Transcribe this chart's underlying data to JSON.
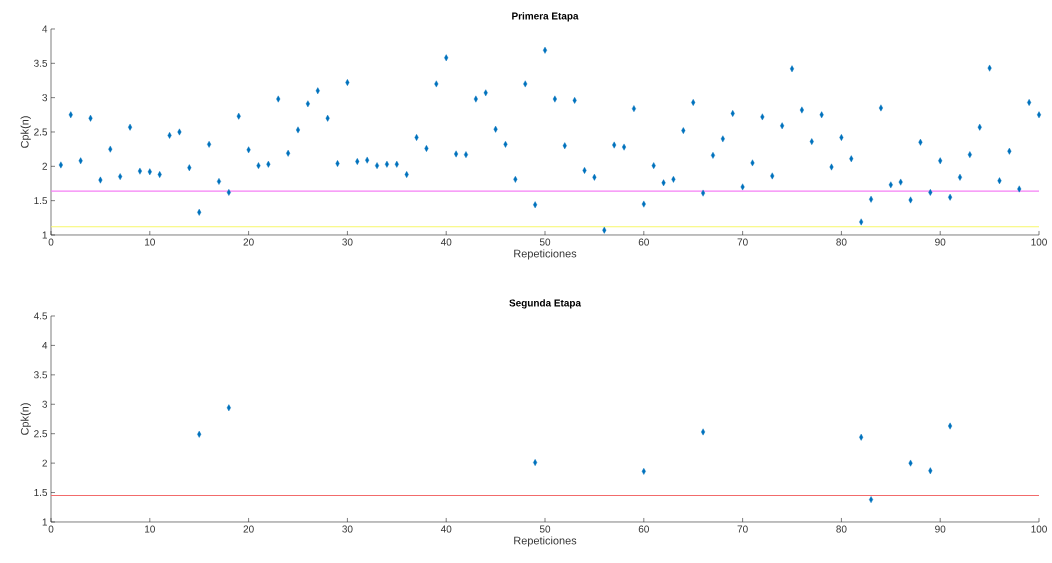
{
  "chart_data": [
    {
      "type": "scatter",
      "title": "Primera Etapa",
      "xlabel": "Repeticiones",
      "ylabel": "Cpk(n)",
      "marker": "diamond",
      "xlim": [
        0,
        100
      ],
      "xticks": [
        0,
        10,
        20,
        30,
        40,
        50,
        60,
        70,
        80,
        90,
        100
      ],
      "ylim": [
        1,
        4
      ],
      "yticks": [
        1,
        1.5,
        2,
        2.5,
        3,
        3.5,
        4
      ],
      "ref_lines": [
        {
          "axis": "y",
          "value": 1.64,
          "color": "#f57ff5"
        },
        {
          "axis": "y",
          "value": 1.12,
          "color": "#f7f76a"
        }
      ],
      "series": [
        {
          "color": "#0072bd",
          "x": [
            1,
            2,
            3,
            4,
            5,
            6,
            7,
            8,
            9,
            10,
            11,
            12,
            13,
            14,
            15,
            16,
            17,
            18,
            19,
            20,
            21,
            22,
            23,
            24,
            25,
            26,
            27,
            28,
            29,
            30,
            31,
            32,
            33,
            34,
            35,
            36,
            37,
            38,
            39,
            40,
            41,
            42,
            43,
            44,
            45,
            46,
            47,
            48,
            49,
            50,
            51,
            52,
            53,
            54,
            55,
            56,
            57,
            58,
            59,
            60,
            61,
            62,
            63,
            64,
            65,
            66,
            67,
            68,
            69,
            70,
            71,
            72,
            73,
            74,
            75,
            76,
            77,
            78,
            79,
            80,
            81,
            82,
            83,
            84,
            85,
            86,
            87,
            88,
            89,
            90,
            91,
            92,
            93,
            94,
            95,
            96,
            97,
            98,
            99,
            100
          ],
          "values": [
            2.02,
            2.75,
            2.08,
            2.7,
            1.8,
            2.25,
            1.85,
            2.57,
            1.93,
            1.92,
            1.88,
            2.45,
            2.5,
            1.98,
            1.33,
            2.32,
            1.78,
            1.62,
            2.73,
            2.24,
            2.01,
            2.03,
            2.98,
            2.19,
            2.53,
            2.91,
            3.1,
            2.7,
            2.04,
            3.22,
            2.07,
            2.09,
            2.01,
            2.03,
            2.03,
            1.88,
            2.42,
            2.26,
            3.2,
            3.58,
            2.18,
            2.17,
            2.98,
            3.07,
            2.54,
            2.32,
            1.81,
            3.2,
            1.44,
            3.69,
            2.98,
            2.3,
            2.96,
            1.94,
            1.84,
            1.07,
            2.31,
            2.28,
            2.84,
            1.45,
            2.01,
            1.76,
            1.81,
            2.52,
            2.93,
            1.61,
            2.16,
            2.4,
            2.77,
            1.7,
            2.05,
            2.72,
            1.86,
            2.59,
            3.42,
            2.82,
            2.36,
            2.75,
            1.99,
            2.42,
            2.11,
            1.19,
            1.52,
            2.85,
            1.73,
            1.77,
            1.51,
            2.35,
            1.62,
            2.08,
            1.55,
            1.84,
            2.17,
            2.57,
            3.43,
            1.79,
            2.22,
            1.67,
            2.93,
            2.75
          ]
        }
      ]
    },
    {
      "type": "scatter",
      "title": "Segunda Etapa",
      "xlabel": "Repeticiones",
      "ylabel": "Cpk(n)",
      "marker": "diamond",
      "xlim": [
        0,
        100
      ],
      "xticks": [
        0,
        10,
        20,
        30,
        40,
        50,
        60,
        70,
        80,
        90,
        100
      ],
      "ylim": [
        1,
        4.5
      ],
      "yticks": [
        1,
        1.5,
        2,
        2.5,
        3,
        3.5,
        4,
        4.5
      ],
      "ref_lines": [
        {
          "axis": "y",
          "value": 1.45,
          "color": "#f26b6b"
        }
      ],
      "series": [
        {
          "color": "#0072bd",
          "x": [
            15,
            18,
            49,
            60,
            66,
            82,
            83,
            87,
            89,
            91
          ],
          "values": [
            2.49,
            2.94,
            2.01,
            1.86,
            2.53,
            2.44,
            1.38,
            2.0,
            1.87,
            2.63
          ]
        }
      ]
    }
  ]
}
